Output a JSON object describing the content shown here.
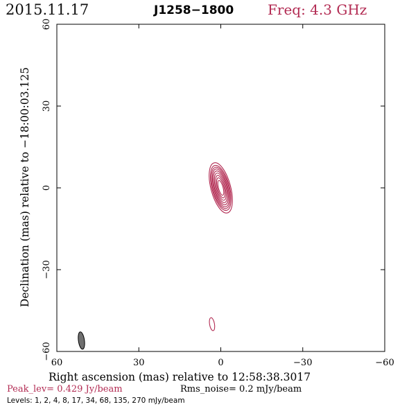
{
  "header": {
    "date": "2015.11.17",
    "source": "J1258−1800",
    "frequency": "Freq: 4.3 GHz"
  },
  "footer": {
    "peak": "Peak_lev=  0.429 Jy/beam",
    "rms": "Rms_noise=  0.2 mJy/beam",
    "levels": "Levels:   1,   2,   4,   8,  17,  34,  68, 135, 270 mJy/beam"
  },
  "colors": {
    "contour": "#b22a52",
    "beam": "#707070"
  },
  "chart_data": {
    "type": "contour",
    "xlabel": "Right ascension (mas) relative to 12:58:38.3017",
    "ylabel": "Declination (mas) relative to −18:00:03.125",
    "xlim": [
      60,
      -60
    ],
    "ylim": [
      -60,
      60
    ],
    "xticks": [
      60,
      30,
      0,
      -30,
      -60
    ],
    "yticks": [
      -60,
      -30,
      0,
      30,
      60
    ],
    "xtick_labels": [
      "60",
      "30",
      "0",
      "−30",
      "−60"
    ],
    "ytick_labels": [
      "−60",
      "−30",
      "0",
      "30",
      "60"
    ],
    "contour_levels_mJy": [
      1,
      2,
      4,
      8,
      17,
      34,
      68,
      135,
      270
    ],
    "peak_Jy_per_beam": 0.429,
    "rms_mJy_per_beam": 0.2,
    "main_component": {
      "center": [
        0,
        0
      ],
      "major_axis_mas": [
        19,
        17,
        15.6,
        14.3,
        12.8,
        11.2,
        9.4,
        7.6,
        5.6
      ],
      "minor_axis_mas": [
        7.2,
        6.4,
        5.8,
        5.1,
        4.5,
        3.8,
        3.1,
        2.4,
        1.7
      ],
      "position_angle_deg": 15
    },
    "secondary_component": {
      "center": [
        3.2,
        -50
      ],
      "major_axis_mas": 4.8,
      "minor_axis_mas": 1.8,
      "position_angle_deg": 10
    },
    "beam": {
      "center": [
        51,
        -56
      ],
      "major_axis_mas": 6.4,
      "minor_axis_mas": 2.2,
      "position_angle_deg": 8
    }
  }
}
